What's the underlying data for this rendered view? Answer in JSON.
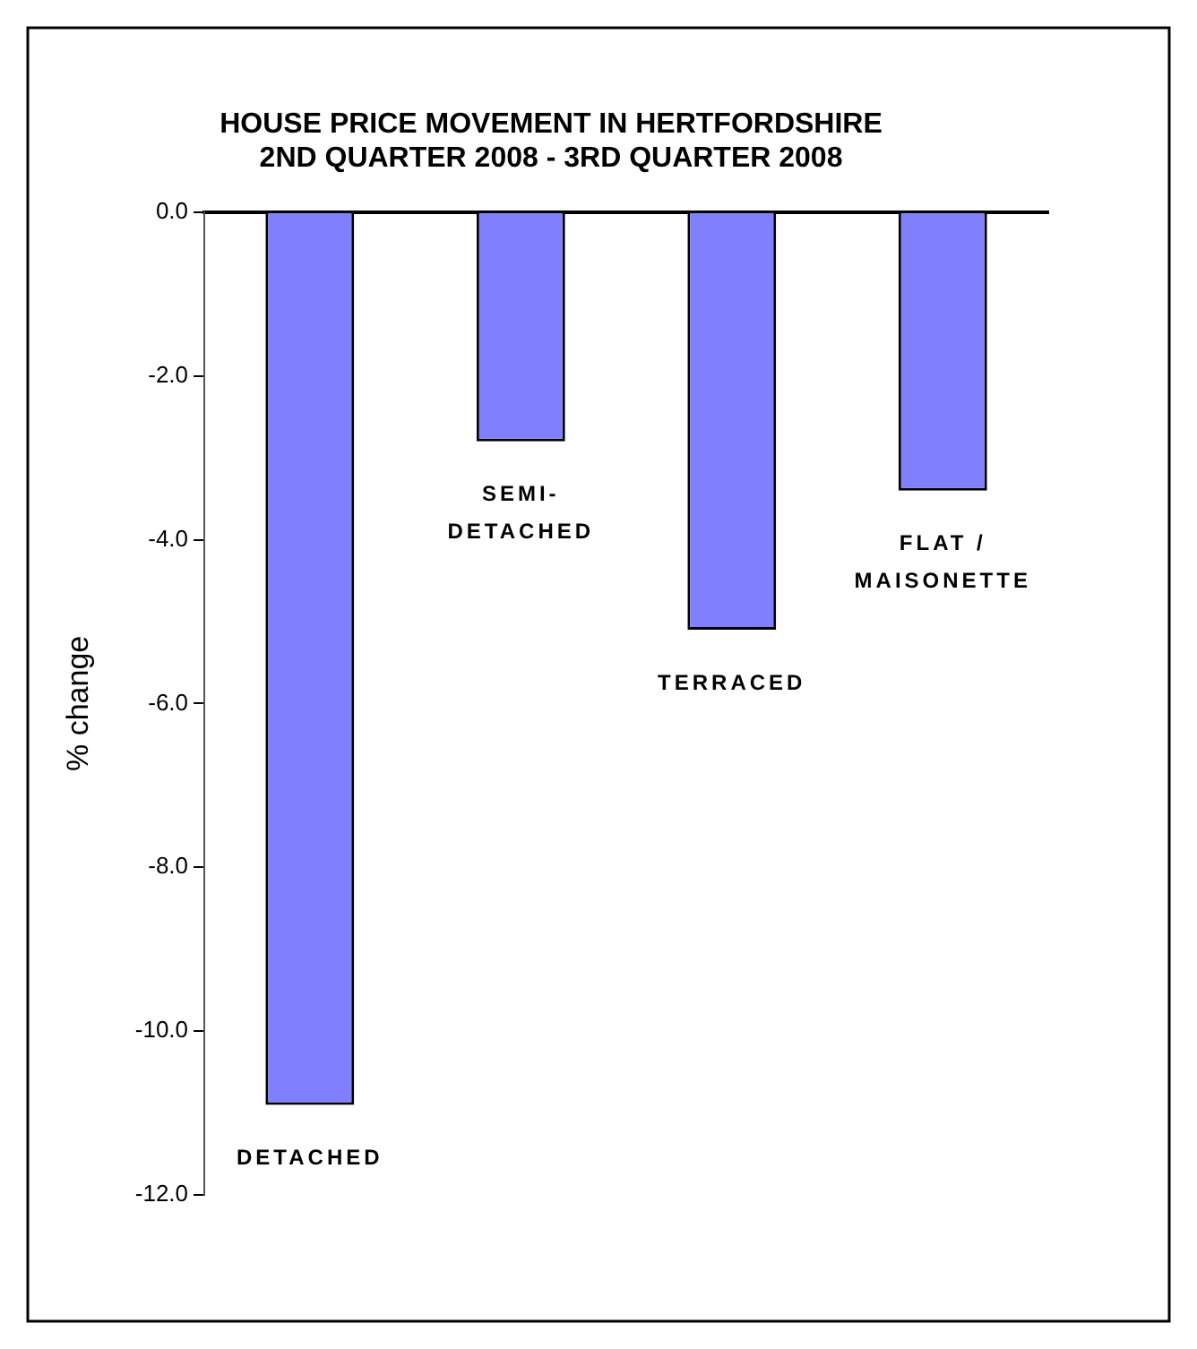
{
  "chart_data": {
    "type": "bar",
    "title": "HOUSE PRICE MOVEMENT IN HERTFORDSHIRE\n2ND QUARTER 2008 - 3RD QUARTER 2008",
    "ylabel": "% change",
    "categories": [
      "DETACHED",
      "SEMI-\nDETACHED",
      "TERRACED",
      "FLAT /\nMAISONETTE"
    ],
    "values": [
      -10.9,
      -2.8,
      -5.1,
      -3.4
    ],
    "color": "#8080ff",
    "ylim": [
      -12,
      0
    ],
    "yticks": [
      {
        "value": 0,
        "label": "0.0"
      },
      {
        "value": -2,
        "label": "-2.0"
      },
      {
        "value": -4,
        "label": "-4.0"
      },
      {
        "value": -6,
        "label": "-6.0"
      },
      {
        "value": -8,
        "label": "-8.0"
      },
      {
        "value": -10,
        "label": "-10.0"
      },
      {
        "value": -12,
        "label": "-12.0"
      }
    ],
    "grid": false,
    "legend": false
  }
}
